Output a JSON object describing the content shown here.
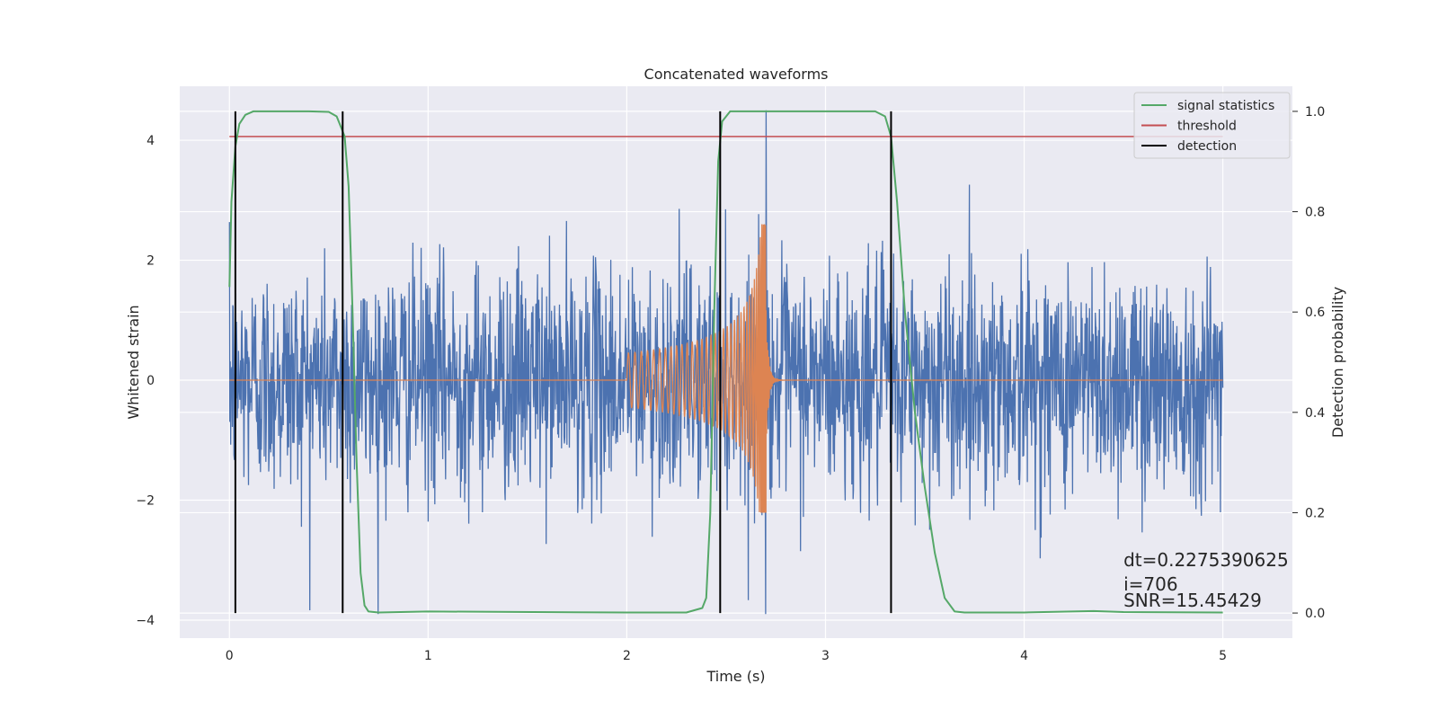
{
  "chart_data": {
    "type": "line",
    "title": "Concatenated waveforms",
    "xlabel": "Time (s)",
    "ylabel": "Whitened strain",
    "y2label": "Detection probability",
    "xlim": [
      -0.25,
      5.35
    ],
    "ylim": [
      -4.3,
      4.9
    ],
    "y2lim": [
      -0.05,
      1.05
    ],
    "xticks": [
      0,
      1,
      2,
      3,
      4,
      5
    ],
    "yticks": [
      -4,
      -2,
      0,
      2,
      4
    ],
    "y2ticks": [
      0.0,
      0.2,
      0.4,
      0.6,
      0.8,
      1.0
    ],
    "xtick_labels": [
      "0",
      "1",
      "2",
      "3",
      "4",
      "5"
    ],
    "ytick_labels": [
      "−4",
      "−2",
      "0",
      "2",
      "4"
    ],
    "y2tick_labels": [
      "0.0",
      "0.2",
      "0.4",
      "0.6",
      "0.8",
      "1.0"
    ],
    "grid": true,
    "legend_position": "top-right",
    "legend": [
      {
        "label": "signal statistics",
        "color": "#55a868"
      },
      {
        "label": "threshold",
        "color": "#c44e52"
      },
      {
        "label": "detection",
        "color": "#000000"
      }
    ],
    "colors": {
      "background": "#eaeaf2",
      "grid": "#ffffff",
      "strain": "#4c72b0",
      "injection": "#dd8452",
      "statistics": "#55a868",
      "threshold": "#c44e52",
      "detection": "#000000"
    },
    "series": [
      {
        "name": "signal statistics",
        "axis": "y2",
        "x": [
          0.0,
          0.01,
          0.03,
          0.05,
          0.08,
          0.12,
          0.2,
          0.4,
          0.5,
          0.54,
          0.56,
          0.58,
          0.6,
          0.62,
          0.64,
          0.66,
          0.68,
          0.7,
          0.75,
          1.0,
          2.0,
          2.3,
          2.38,
          2.4,
          2.42,
          2.44,
          2.46,
          2.48,
          2.52,
          2.6,
          3.0,
          3.25,
          3.3,
          3.33,
          3.36,
          3.4,
          3.45,
          3.5,
          3.55,
          3.6,
          3.65,
          3.7,
          4.0,
          4.35,
          4.5,
          5.0
        ],
        "y": [
          0.65,
          0.82,
          0.93,
          0.975,
          0.993,
          1.0,
          1.0,
          1.0,
          0.999,
          0.99,
          0.97,
          0.95,
          0.85,
          0.6,
          0.3,
          0.08,
          0.015,
          0.003,
          0.001,
          0.003,
          0.001,
          0.001,
          0.01,
          0.03,
          0.2,
          0.6,
          0.9,
          0.98,
          1.0,
          1.0,
          1.0,
          1.0,
          0.99,
          0.95,
          0.82,
          0.6,
          0.4,
          0.25,
          0.12,
          0.03,
          0.003,
          0.001,
          0.001,
          0.004,
          0.002,
          0.001
        ]
      },
      {
        "name": "threshold",
        "axis": "y2",
        "x": [
          0.0,
          5.0
        ],
        "y": [
          0.95,
          0.95
        ]
      },
      {
        "name": "detection",
        "axis": "y2",
        "type": "vlines",
        "x": [
          0.03,
          0.57,
          2.47,
          3.33
        ],
        "ymin": 0.0,
        "ymax": 1.0
      },
      {
        "name": "Whitened strain",
        "axis": "y",
        "type": "noise",
        "x_range": [
          0.0,
          5.0
        ],
        "samples": 2400,
        "typical_amplitude": 1.0,
        "peak_range": [
          -3.9,
          3.4
        ],
        "extreme_spike": {
          "x": 2.7,
          "max": 4.5,
          "min": -3.9
        }
      },
      {
        "name": "Injected waveform",
        "axis": "y",
        "type": "chirp",
        "x_range": [
          0.0,
          5.0
        ],
        "chirp_start": 2.0,
        "merger": 2.7,
        "start_amplitude": 0.45,
        "peak_amplitude": 2.6,
        "peak_min": -2.2
      }
    ],
    "annotation": {
      "lines": [
        "dt=0.2275390625",
        " i=706",
        "SNR=15.45429"
      ],
      "x": 4.5
    }
  }
}
